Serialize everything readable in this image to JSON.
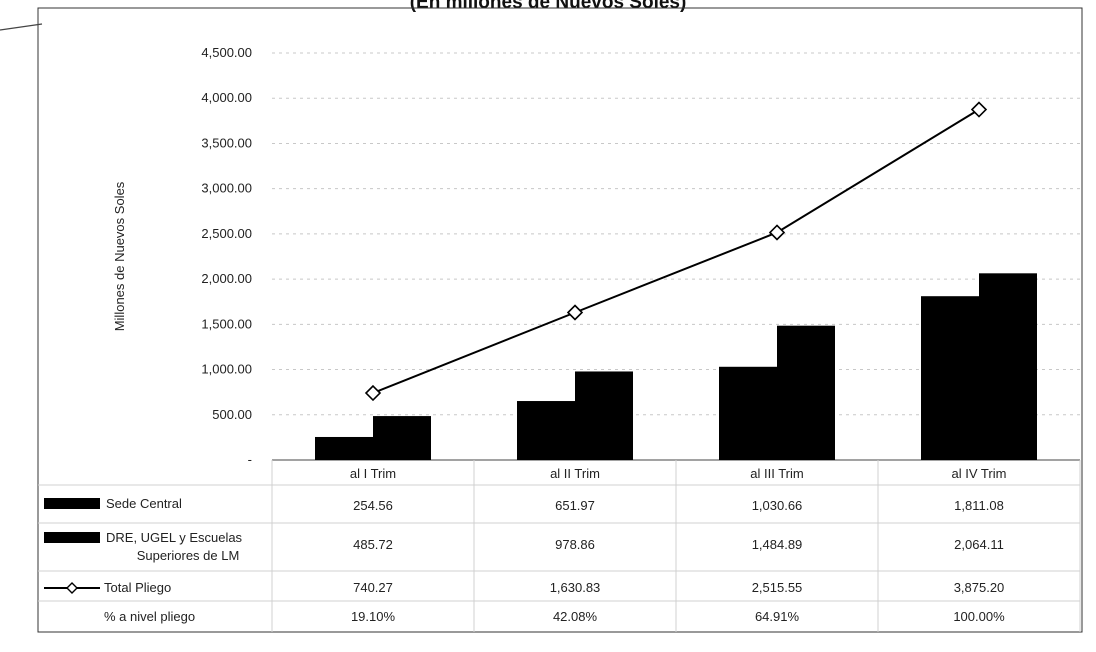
{
  "chart_data": {
    "type": "bar",
    "title": "(En millones de Nuevos Soles)",
    "ylabel": "Millones de Nuevos Soles",
    "xlabel": "",
    "ylim": [
      0,
      4500
    ],
    "yticks": [
      0,
      500,
      1000,
      1500,
      2000,
      2500,
      3000,
      3500,
      4000,
      4500
    ],
    "ytick_labels": [
      "-",
      "500.00",
      "1,000.00",
      "1,500.00",
      "2,000.00",
      "2,500.00",
      "3,000.00",
      "3,500.00",
      "4,000.00",
      "4,500.00"
    ],
    "grid": true,
    "legend_placement": "data-table-left",
    "categories": [
      "al I Trim",
      "al II Trim",
      "al III Trim",
      "al IV Trim"
    ],
    "series": [
      {
        "name": "Sede Central",
        "kind": "bar",
        "color": "#000000",
        "values": [
          254.56,
          651.97,
          1030.66,
          1811.08
        ],
        "labels": [
          "254.56",
          "651.97",
          "1,030.66",
          "1,811.08"
        ]
      },
      {
        "name": "DRE, UGEL y Escuelas Superiores de LM",
        "label_lines": [
          "DRE, UGEL y Escuelas",
          "Superiores de LM"
        ],
        "kind": "bar",
        "color": "#000000",
        "values": [
          485.72,
          978.86,
          1484.89,
          2064.11
        ],
        "labels": [
          "485.72",
          "978.86",
          "1,484.89",
          "2,064.11"
        ]
      },
      {
        "name": "Total Pliego",
        "kind": "line",
        "marker": "diamond",
        "color": "#000000",
        "values": [
          740.27,
          1630.83,
          2515.55,
          3875.2
        ],
        "labels": [
          "740.27",
          "1,630.83",
          "2,515.55",
          "3,875.20"
        ]
      }
    ],
    "extra_rows": [
      {
        "name": "% a nivel pliego",
        "values": [
          "19.10%",
          "42.08%",
          "64.91%",
          "100.00%"
        ]
      }
    ]
  }
}
